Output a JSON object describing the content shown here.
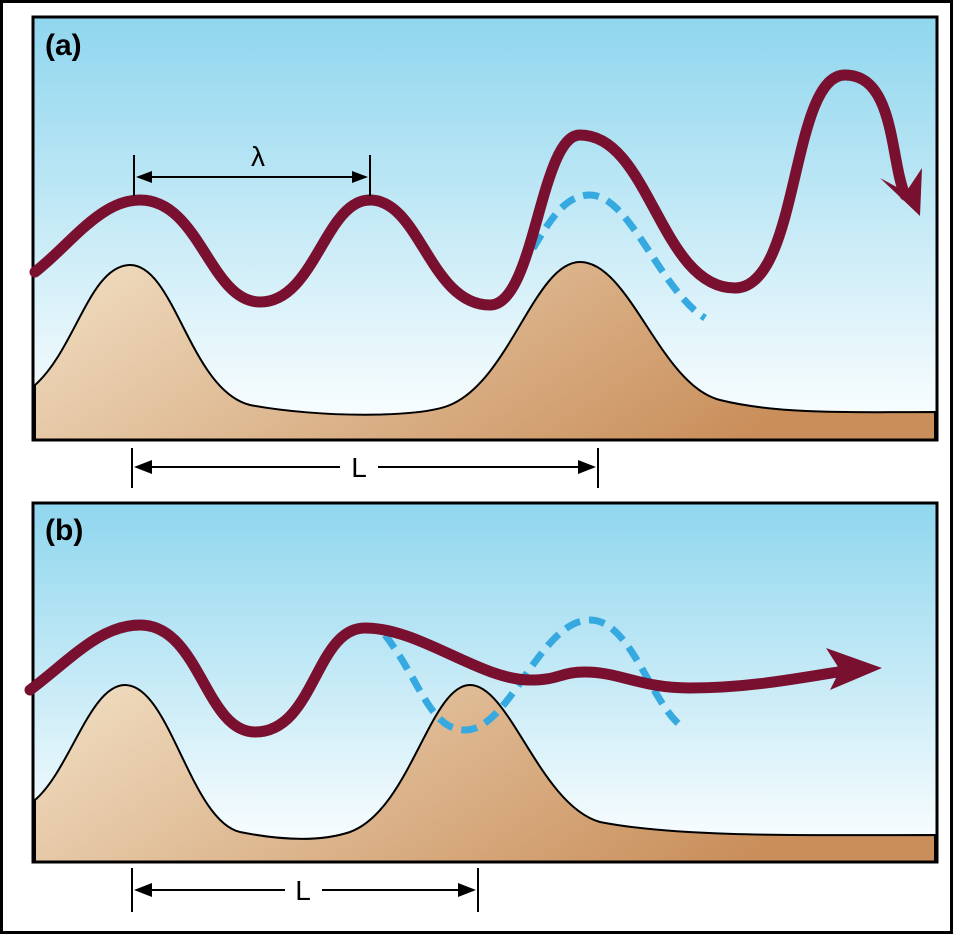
{
  "panels": [
    {
      "label": "(a)",
      "wavelength_label": "λ",
      "spacing_label": "L"
    },
    {
      "label": "(b)",
      "spacing_label": "L"
    }
  ]
}
